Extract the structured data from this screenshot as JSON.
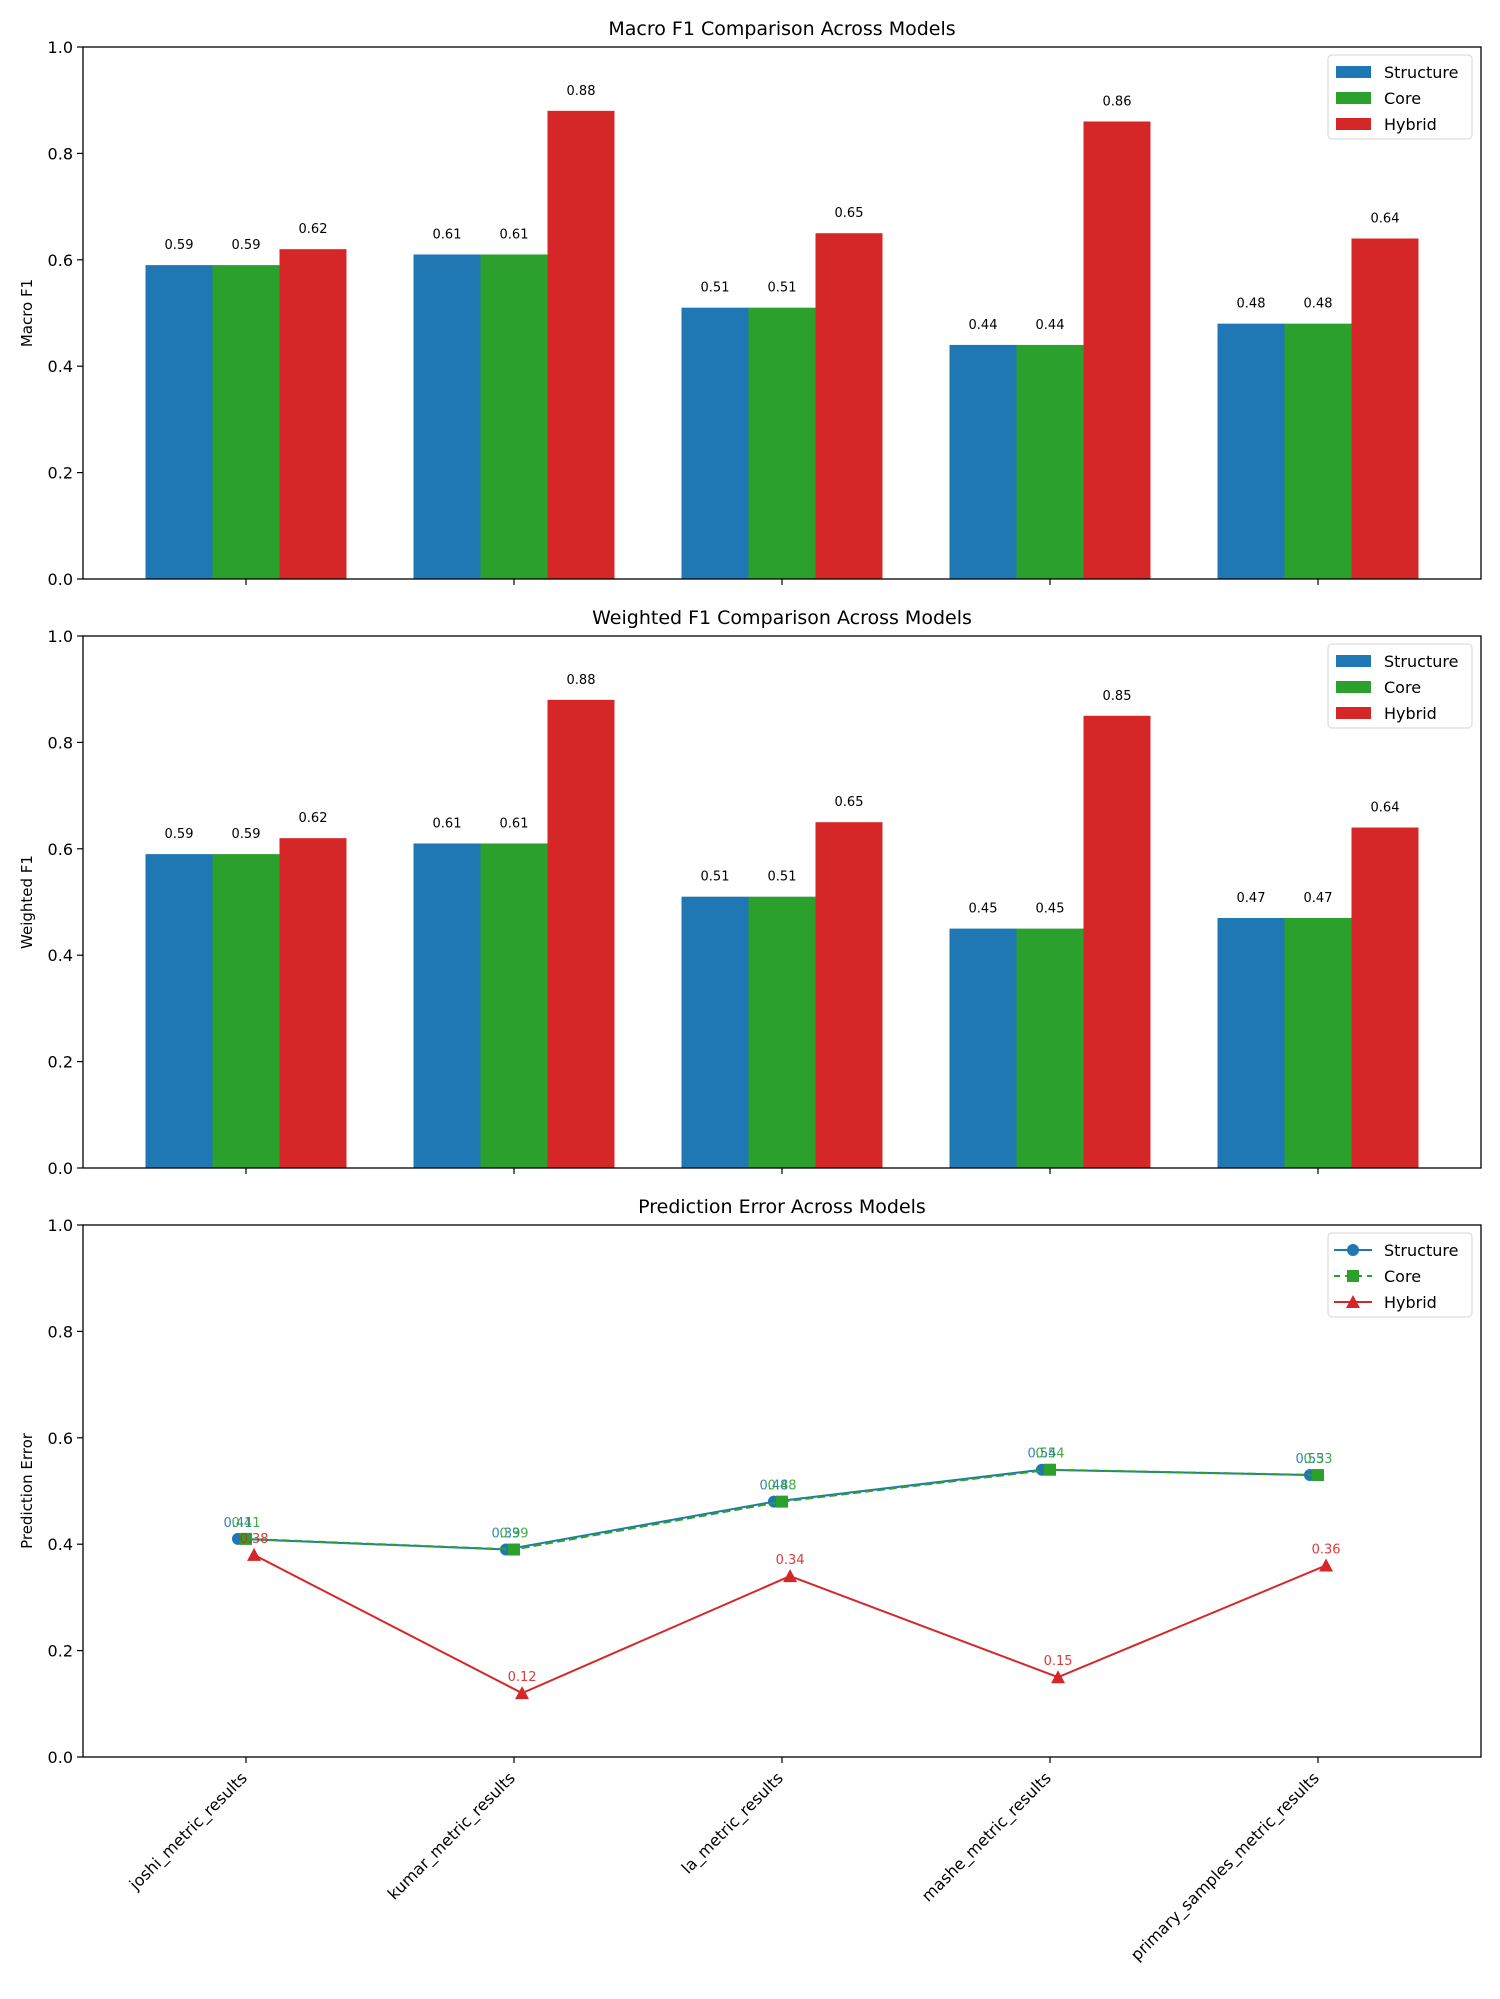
{
  "chart_data": [
    {
      "type": "bar",
      "title": "Macro F1 Comparison Across Models",
      "xlabel": "",
      "ylabel": "Macro F1",
      "ylim": [
        0,
        1.0
      ],
      "yticks": [
        "0.0",
        "0.2",
        "0.4",
        "0.6",
        "0.8",
        "1.0"
      ],
      "categories": [
        "joshi_metric_results",
        "kumar_metric_results",
        "la_metric_results",
        "mashe_metric_results",
        "primary_samples_metric_results"
      ],
      "show_xticklabels": false,
      "legend": "top-right",
      "series": [
        {
          "name": "Structure",
          "color": "#1f77b4",
          "values": [
            0.59,
            0.61,
            0.51,
            0.44,
            0.48
          ],
          "labels": [
            "0.59",
            "0.61",
            "0.51",
            "0.44",
            "0.48"
          ]
        },
        {
          "name": "Core",
          "color": "#2ca02c",
          "values": [
            0.59,
            0.61,
            0.51,
            0.44,
            0.48
          ],
          "labels": [
            "0.59",
            "0.61",
            "0.51",
            "0.44",
            "0.48"
          ]
        },
        {
          "name": "Hybrid",
          "color": "#d62728",
          "values": [
            0.62,
            0.88,
            0.65,
            0.86,
            0.64
          ],
          "labels": [
            "0.62",
            "0.88",
            "0.65",
            "0.86",
            "0.64"
          ]
        }
      ]
    },
    {
      "type": "bar",
      "title": "Weighted F1 Comparison Across Models",
      "xlabel": "",
      "ylabel": "Weighted F1",
      "ylim": [
        0,
        1.0
      ],
      "yticks": [
        "0.0",
        "0.2",
        "0.4",
        "0.6",
        "0.8",
        "1.0"
      ],
      "categories": [
        "joshi_metric_results",
        "kumar_metric_results",
        "la_metric_results",
        "mashe_metric_results",
        "primary_samples_metric_results"
      ],
      "show_xticklabels": false,
      "legend": "top-right",
      "series": [
        {
          "name": "Structure",
          "color": "#1f77b4",
          "values": [
            0.59,
            0.61,
            0.51,
            0.45,
            0.47
          ],
          "labels": [
            "0.59",
            "0.61",
            "0.51",
            "0.45",
            "0.47"
          ]
        },
        {
          "name": "Core",
          "color": "#2ca02c",
          "values": [
            0.59,
            0.61,
            0.51,
            0.45,
            0.47
          ],
          "labels": [
            "0.59",
            "0.61",
            "0.51",
            "0.45",
            "0.47"
          ]
        },
        {
          "name": "Hybrid",
          "color": "#d62728",
          "values": [
            0.62,
            0.88,
            0.65,
            0.85,
            0.64
          ],
          "labels": [
            "0.62",
            "0.88",
            "0.65",
            "0.85",
            "0.64"
          ]
        }
      ]
    },
    {
      "type": "line",
      "title": "Prediction Error Across Models",
      "xlabel": "",
      "ylabel": "Prediction Error",
      "ylim": [
        0,
        1.0
      ],
      "yticks": [
        "0.0",
        "0.2",
        "0.4",
        "0.6",
        "0.8",
        "1.0"
      ],
      "categories": [
        "joshi_metric_results",
        "kumar_metric_results",
        "la_metric_results",
        "mashe_metric_results",
        "primary_samples_metric_results"
      ],
      "show_xticklabels": true,
      "legend": "top-right",
      "series": [
        {
          "name": "Structure",
          "color": "#1f77b4",
          "marker": "circle",
          "linestyle": "solid",
          "x_offset": -0.03,
          "values": [
            0.41,
            0.39,
            0.48,
            0.54,
            0.53
          ],
          "labels": [
            "0.41",
            "0.39",
            "0.48",
            "0.54",
            "0.53"
          ]
        },
        {
          "name": "Core",
          "color": "#2ca02c",
          "marker": "square",
          "linestyle": "dashed",
          "x_offset": 0.0,
          "values": [
            0.41,
            0.39,
            0.48,
            0.54,
            0.53
          ],
          "labels": [
            "0.41",
            "0.39",
            "0.48",
            "0.54",
            "0.53"
          ]
        },
        {
          "name": "Hybrid",
          "color": "#d62728",
          "marker": "triangle",
          "linestyle": "solid",
          "x_offset": 0.03,
          "values": [
            0.38,
            0.12,
            0.34,
            0.15,
            0.36
          ],
          "labels": [
            "0.38",
            "0.12",
            "0.34",
            "0.15",
            "0.36"
          ]
        }
      ]
    }
  ]
}
